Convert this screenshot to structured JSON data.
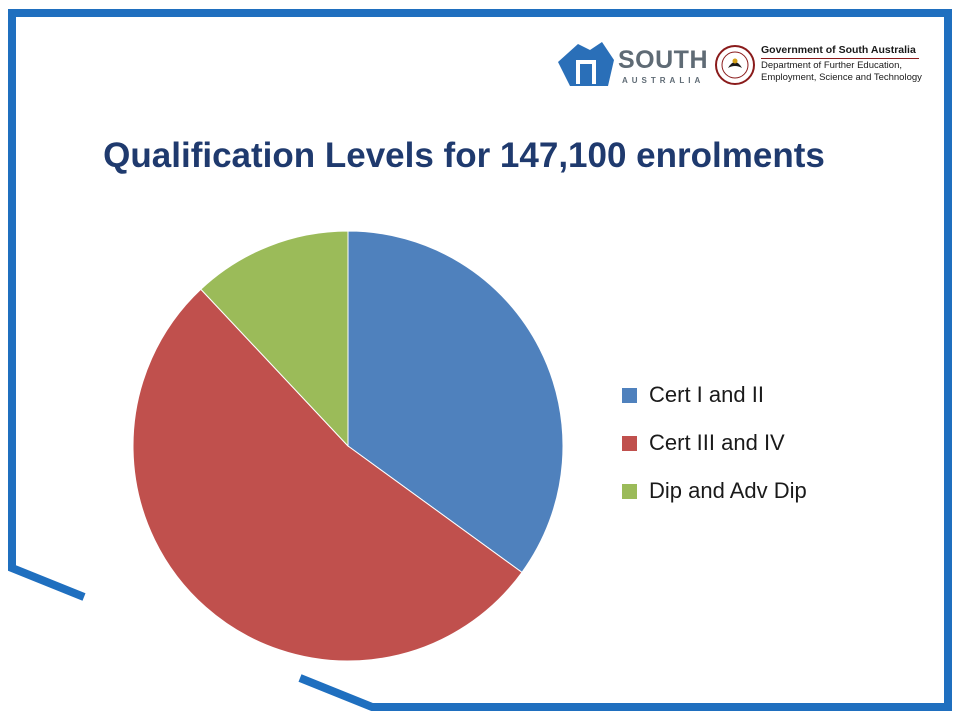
{
  "header": {
    "brand_name": "SOUTH",
    "brand_sub": "AUSTRALIA",
    "gov_title": "Government of South Australia",
    "gov_dept_line1": "Department of Further Education,",
    "gov_dept_line2": "Employment, Science and Technology"
  },
  "colors": {
    "frame": "#1f6fbf",
    "title": "#1f3a6e"
  },
  "chart_data": {
    "type": "pie",
    "title": "Qualification Levels for 147,100 enrolments",
    "start_angle_deg": 0,
    "direction": "clockwise",
    "legend_position": "right",
    "slices": [
      {
        "label": "Cert I and II",
        "value": 35,
        "color": "#4f81bd"
      },
      {
        "label": "Cert III and IV",
        "value": 53,
        "color": "#c0504d"
      },
      {
        "label": "Dip and Adv Dip",
        "value": 12,
        "color": "#9bbb59"
      }
    ]
  }
}
